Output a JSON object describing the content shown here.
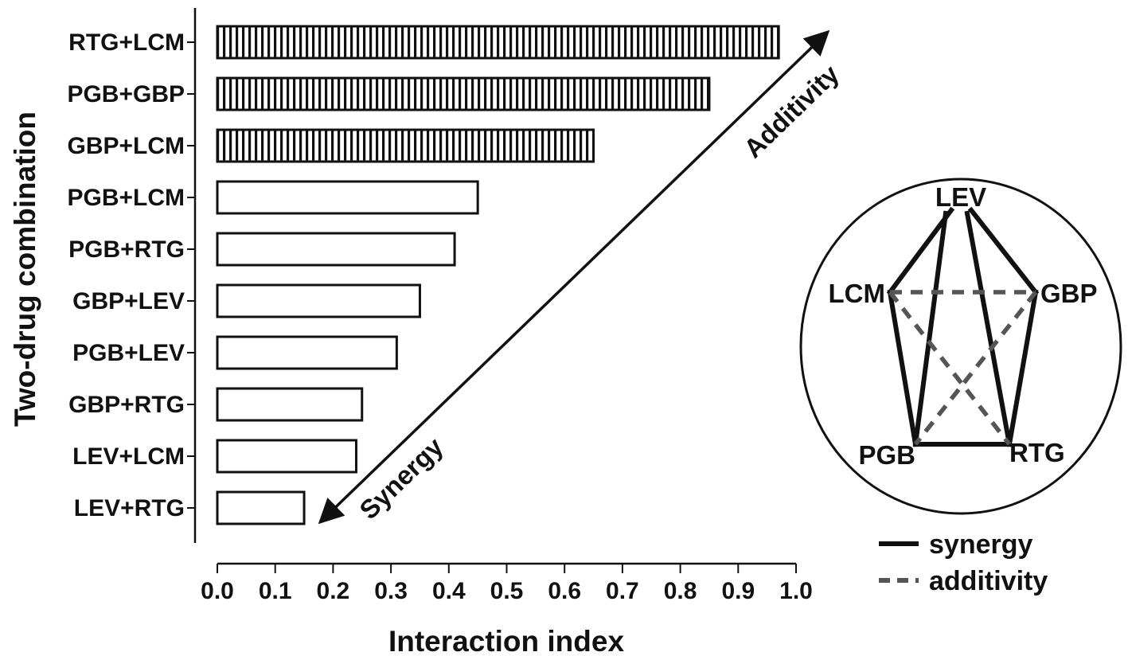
{
  "chart_data": {
    "type": "bar",
    "orientation": "horizontal",
    "xlabel": "Interaction index",
    "ylabel": "Two-drug combination",
    "xlim": [
      0,
      1.0
    ],
    "xticks": [
      "0.0",
      "0.1",
      "0.2",
      "0.3",
      "0.4",
      "0.5",
      "0.6",
      "0.7",
      "0.8",
      "0.9",
      "1.0"
    ],
    "bars": [
      {
        "label": "RTG+LCM",
        "value": 0.97,
        "pattern": "hatched"
      },
      {
        "label": "PGB+GBP",
        "value": 0.85,
        "pattern": "hatched"
      },
      {
        "label": "GBP+LCM",
        "value": 0.65,
        "pattern": "hatched"
      },
      {
        "label": "PGB+LCM",
        "value": 0.45,
        "pattern": "open"
      },
      {
        "label": "PGB+RTG",
        "value": 0.41,
        "pattern": "open"
      },
      {
        "label": "GBP+LEV",
        "value": 0.35,
        "pattern": "open"
      },
      {
        "label": "PGB+LEV",
        "value": 0.31,
        "pattern": "open"
      },
      {
        "label": "GBP+RTG",
        "value": 0.25,
        "pattern": "open"
      },
      {
        "label": "LEV+LCM",
        "value": 0.24,
        "pattern": "open"
      },
      {
        "label": "LEV+RTG",
        "value": 0.15,
        "pattern": "open"
      }
    ],
    "annotations": {
      "up_arrow": "Additivity",
      "down_arrow": "Synergy"
    },
    "inset": {
      "nodes": [
        "LEV",
        "LCM",
        "GBP",
        "PGB",
        "RTG"
      ],
      "edges": [
        {
          "from": "LEV",
          "to": "LCM",
          "type": "synergy"
        },
        {
          "from": "LEV",
          "to": "GBP",
          "type": "synergy"
        },
        {
          "from": "LEV",
          "to": "PGB",
          "type": "synergy"
        },
        {
          "from": "LEV",
          "to": "RTG",
          "type": "synergy"
        },
        {
          "from": "LCM",
          "to": "PGB",
          "type": "synergy"
        },
        {
          "from": "GBP",
          "to": "RTG",
          "type": "synergy"
        },
        {
          "from": "PGB",
          "to": "RTG",
          "type": "synergy"
        },
        {
          "from": "LCM",
          "to": "GBP",
          "type": "additivity"
        },
        {
          "from": "LCM",
          "to": "RTG",
          "type": "additivity"
        },
        {
          "from": "GBP",
          "to": "PGB",
          "type": "additivity"
        }
      ],
      "legend": [
        {
          "type": "synergy",
          "label": "synergy"
        },
        {
          "type": "additivity",
          "label": "additivity"
        }
      ]
    },
    "colors": {
      "ink": "#111111",
      "dashed": "#555555",
      "bar_fill": "#ffffff"
    }
  }
}
